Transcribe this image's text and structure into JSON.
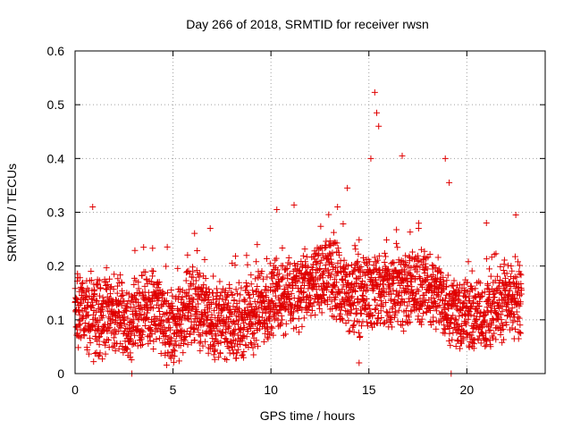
{
  "chart_data": {
    "type": "scatter",
    "title": "Day 266 of 2018, SRMTID for receiver rwsn",
    "xlabel": "GPS time / hours",
    "ylabel": "SRMTID / TECUs",
    "xlim": [
      0,
      24
    ],
    "ylim": [
      0,
      0.6
    ],
    "xticks": [
      0,
      5,
      10,
      15,
      20
    ],
    "xtick_labels": [
      "0",
      "5",
      "10",
      "15",
      "20"
    ],
    "yticks": [
      0,
      0.1,
      0.2,
      0.3,
      0.4,
      0.5,
      0.6
    ],
    "ytick_labels": [
      "0",
      "0.1",
      "0.2",
      "0.3",
      "0.4",
      "0.5",
      "0.6"
    ],
    "grid": true,
    "marker": "+",
    "color": "#e00000",
    "series": [
      {
        "name": "SRMTID",
        "x_range": [
          0,
          22.8
        ],
        "x_step_hours": 0.0083,
        "typical_level_by_hour": [
          [
            0,
            0.13
          ],
          [
            1,
            0.1
          ],
          [
            2,
            0.11
          ],
          [
            3,
            0.1
          ],
          [
            4,
            0.12
          ],
          [
            5,
            0.08
          ],
          [
            6,
            0.13
          ],
          [
            7,
            0.1
          ],
          [
            8,
            0.09
          ],
          [
            9,
            0.11
          ],
          [
            10,
            0.14
          ],
          [
            11,
            0.15
          ],
          [
            12,
            0.16
          ],
          [
            13,
            0.18
          ],
          [
            14,
            0.14
          ],
          [
            15,
            0.15
          ],
          [
            16,
            0.15
          ],
          [
            17,
            0.16
          ],
          [
            18,
            0.16
          ],
          [
            19,
            0.13
          ],
          [
            20,
            0.1
          ],
          [
            21,
            0.11
          ],
          [
            22,
            0.14
          ],
          [
            22.8,
            0.14
          ]
        ],
        "notable_points": [
          {
            "x": 0.9,
            "y": 0.31
          },
          {
            "x": 3.5,
            "y": 0.235
          },
          {
            "x": 6.9,
            "y": 0.27
          },
          {
            "x": 9.3,
            "y": 0.24
          },
          {
            "x": 10.3,
            "y": 0.305
          },
          {
            "x": 13.4,
            "y": 0.31
          },
          {
            "x": 13.9,
            "y": 0.345
          },
          {
            "x": 15.1,
            "y": 0.4
          },
          {
            "x": 15.3,
            "y": 0.523
          },
          {
            "x": 15.4,
            "y": 0.485
          },
          {
            "x": 15.5,
            "y": 0.46
          },
          {
            "x": 16.7,
            "y": 0.405
          },
          {
            "x": 18.9,
            "y": 0.4
          },
          {
            "x": 19.1,
            "y": 0.355
          },
          {
            "x": 21.0,
            "y": 0.28
          },
          {
            "x": 22.5,
            "y": 0.295
          },
          {
            "x": 14.5,
            "y": 0.02
          },
          {
            "x": 19.2,
            "y": 0.0
          },
          {
            "x": 2.9,
            "y": 0.0
          }
        ]
      }
    ]
  }
}
